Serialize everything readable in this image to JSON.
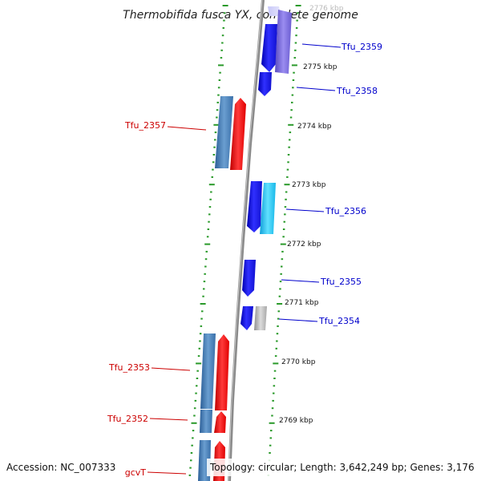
{
  "title": "Thermobifida fusca YX, complete genome",
  "accession": "Accession: NC_007333",
  "topology": "Topology: circular; Length: 3,642,249 bp; Genes: 3,176",
  "colors": {
    "forward_label": "#0000cc",
    "reverse_label": "#cc0000",
    "tick": "#2a9a2a",
    "backbone": "#888888",
    "blue": "#1010ee",
    "cyan": "#22c8f0",
    "steel": "#4a80b8",
    "red": "#ff1010",
    "gray": "#b8b8b8",
    "lavender": "#7a6cd8"
  },
  "scale_labels": [
    "2776 kbp",
    "2775 kbp",
    "2774 kbp",
    "2773 kbp",
    "2772 kbp",
    "2771 kbp",
    "2770 kbp",
    "2769 kbp"
  ],
  "genes": [
    {
      "name": "Tfu_2359",
      "strand": "forward"
    },
    {
      "name": "Tfu_2358",
      "strand": "forward"
    },
    {
      "name": "Tfu_2357",
      "strand": "reverse"
    },
    {
      "name": "Tfu_2356",
      "strand": "forward"
    },
    {
      "name": "Tfu_2355",
      "strand": "forward"
    },
    {
      "name": "Tfu_2354",
      "strand": "forward"
    },
    {
      "name": "Tfu_2353",
      "strand": "reverse"
    },
    {
      "name": "Tfu_2352",
      "strand": "reverse"
    },
    {
      "name": "gcvT",
      "strand": "reverse"
    }
  ]
}
